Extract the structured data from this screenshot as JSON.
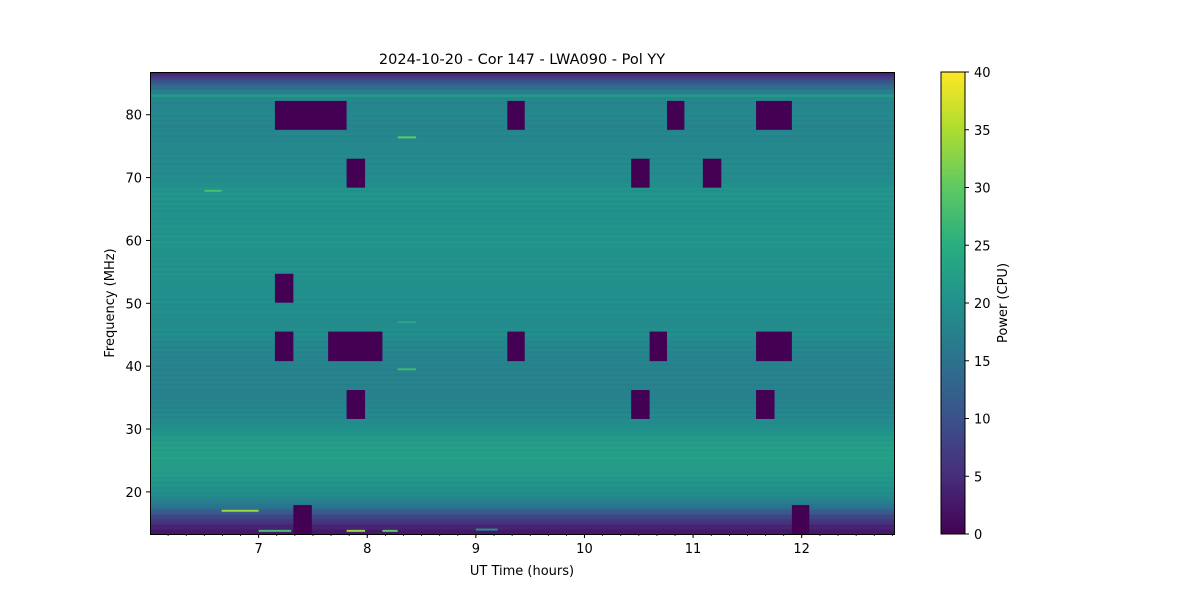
{
  "chart_data": {
    "type": "heatmap",
    "title": "2024-10-20 - Cor 147 - LWA090 - Pol YY",
    "xlabel": "UT Time (hours)",
    "ylabel": "Frequency (MHz)",
    "xlim": [
      6.0,
      12.85
    ],
    "ylim": [
      13.3,
      86.8
    ],
    "xticks": [
      7,
      8,
      9,
      10,
      11,
      12
    ],
    "xtick_labels": [
      "7",
      "8",
      "9",
      "10",
      "11",
      "12"
    ],
    "xminor_step": 0.1667,
    "yticks": [
      20,
      30,
      40,
      50,
      60,
      70,
      80
    ],
    "ytick_labels": [
      "20",
      "30",
      "40",
      "50",
      "60",
      "70",
      "80"
    ],
    "colorbar": {
      "label": "Power (CPU)",
      "range": [
        0,
        40
      ],
      "ticks": [
        0,
        5,
        10,
        15,
        20,
        25,
        30,
        35,
        40
      ],
      "tick_labels": [
        "0",
        "5",
        "10",
        "15",
        "20",
        "25",
        "30",
        "35",
        "40"
      ],
      "colormap": "viridis",
      "colors": [
        "#440154",
        "#472d7b",
        "#3b528b",
        "#2c728e",
        "#21918c",
        "#28ae80",
        "#5ec962",
        "#addc30",
        "#fde725"
      ]
    },
    "frequency_profile": {
      "freq_mhz": [
        13.3,
        14,
        15,
        16,
        17,
        18,
        19,
        20,
        22,
        24,
        26,
        28,
        30,
        32,
        35,
        38,
        40,
        42,
        44,
        45,
        47,
        50,
        55,
        60,
        65,
        68,
        70,
        75,
        78,
        80,
        82,
        82.8,
        83,
        83.2,
        84,
        85,
        86,
        86.8
      ],
      "power": [
        2,
        3,
        5,
        8,
        12,
        16,
        18,
        19.5,
        21,
        22,
        22.5,
        22,
        20,
        18.5,
        17.5,
        17.5,
        17.5,
        18,
        18.5,
        19.5,
        19,
        19.5,
        20,
        20.5,
        20,
        20.5,
        19,
        18.5,
        18,
        18.5,
        18,
        19,
        23,
        19,
        16,
        12,
        7,
        3
      ]
    },
    "flagged_blocks": [
      {
        "t": [
          7.15,
          7.81
        ],
        "f": [
          77.6,
          82.2
        ],
        "value": 0
      },
      {
        "t": [
          9.29,
          9.45
        ],
        "f": [
          77.6,
          82.2
        ],
        "value": 0
      },
      {
        "t": [
          10.76,
          10.92
        ],
        "f": [
          77.6,
          82.2
        ],
        "value": 0
      },
      {
        "t": [
          11.58,
          11.91
        ],
        "f": [
          77.6,
          82.2
        ],
        "value": 0
      },
      {
        "t": [
          7.81,
          7.98
        ],
        "f": [
          68.4,
          73.0
        ],
        "value": 0
      },
      {
        "t": [
          10.43,
          10.6
        ],
        "f": [
          68.4,
          73.0
        ],
        "value": 0
      },
      {
        "t": [
          11.09,
          11.26
        ],
        "f": [
          68.4,
          73.0
        ],
        "value": 0
      },
      {
        "t": [
          7.15,
          7.32
        ],
        "f": [
          50.1,
          54.7
        ],
        "value": 0
      },
      {
        "t": [
          7.15,
          7.32
        ],
        "f": [
          40.8,
          45.5
        ],
        "value": 0
      },
      {
        "t": [
          7.64,
          8.14
        ],
        "f": [
          40.8,
          45.5
        ],
        "value": 0
      },
      {
        "t": [
          9.29,
          9.45
        ],
        "f": [
          40.8,
          45.5
        ],
        "value": 0
      },
      {
        "t": [
          10.6,
          10.76
        ],
        "f": [
          40.8,
          45.5
        ],
        "value": 0
      },
      {
        "t": [
          11.58,
          11.91
        ],
        "f": [
          40.8,
          45.5
        ],
        "value": 0
      },
      {
        "t": [
          7.81,
          7.98
        ],
        "f": [
          31.6,
          36.2
        ],
        "value": 0
      },
      {
        "t": [
          10.43,
          10.6
        ],
        "f": [
          31.6,
          36.2
        ],
        "value": 0
      },
      {
        "t": [
          11.58,
          11.75
        ],
        "f": [
          31.6,
          36.2
        ],
        "value": 0
      },
      {
        "t": [
          7.32,
          7.49
        ],
        "f": [
          13.3,
          17.9
        ],
        "value": 0
      },
      {
        "t": [
          11.91,
          12.07
        ],
        "f": [
          13.3,
          17.9
        ],
        "value": 0
      }
    ],
    "rfi_spikes": [
      {
        "t": [
          6.5,
          6.66
        ],
        "f": 67.9,
        "value": 28
      },
      {
        "t": [
          8.28,
          8.45
        ],
        "f": 76.4,
        "value": 30
      },
      {
        "t": [
          8.28,
          8.45
        ],
        "f": 47.0,
        "value": 24
      },
      {
        "t": [
          8.28,
          8.45
        ],
        "f": 39.5,
        "value": 27
      },
      {
        "t": [
          6.66,
          7.0
        ],
        "f": 17.0,
        "value": 34
      },
      {
        "t": [
          7.0,
          7.3
        ],
        "f": 13.8,
        "value": 28
      },
      {
        "t": [
          7.81,
          7.98
        ],
        "f": 13.8,
        "value": 34
      },
      {
        "t": [
          8.14,
          8.28
        ],
        "f": 13.8,
        "value": 30
      },
      {
        "t": [
          9.0,
          9.2
        ],
        "f": 14.0,
        "value": 20
      }
    ]
  }
}
